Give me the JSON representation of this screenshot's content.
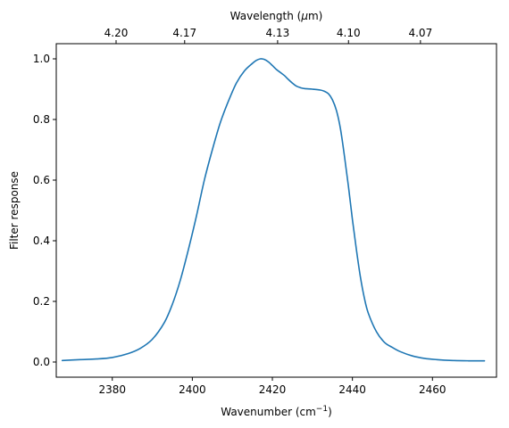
{
  "chart_data": {
    "type": "line",
    "xlabel_text": "Wavenumber (cm",
    "xlabel_sup": "−1",
    "xlabel_close": ")",
    "ylabel": "Filter response",
    "top_xlabel_prefix": "Wavelength (",
    "top_xlabel_mu": "μ",
    "top_xlabel_suffix": "m)",
    "xlim": [
      2366,
      2476
    ],
    "ylim": [
      -0.05,
      1.05
    ],
    "x_ticks": [
      2380,
      2400,
      2420,
      2440,
      2460
    ],
    "x_tick_labels": [
      "2380",
      "2400",
      "2420",
      "2440",
      "2460"
    ],
    "y_ticks": [
      0.0,
      0.2,
      0.4,
      0.6,
      0.8,
      1.0
    ],
    "y_tick_labels": [
      "0.0",
      "0.2",
      "0.4",
      "0.6",
      "0.8",
      "1.0"
    ],
    "top_ticks": [
      {
        "wavenumber": 2380.95,
        "label": "4.20"
      },
      {
        "wavenumber": 2398.08,
        "label": "4.17"
      },
      {
        "wavenumber": 2421.31,
        "label": "4.13"
      },
      {
        "wavenumber": 2439.02,
        "label": "4.10"
      },
      {
        "wavenumber": 2457.0,
        "label": "4.07"
      }
    ],
    "grid": false,
    "series": [
      {
        "color": "#1f77b4",
        "x": [
          2367.5,
          2372,
          2376,
          2380,
          2384,
          2387,
          2390,
          2393,
          2395,
          2397,
          2399,
          2401,
          2403,
          2405,
          2407,
          2409,
          2411,
          2413,
          2415,
          2416,
          2417,
          2418,
          2419,
          2420,
          2421,
          2422,
          2423,
          2424,
          2425,
          2426,
          2427,
          2428,
          2430,
          2432,
          2433,
          2434,
          2435,
          2436,
          2437,
          2438,
          2439,
          2440,
          2441,
          2442,
          2443,
          2444,
          2446,
          2448,
          2450,
          2452,
          2455,
          2458,
          2461,
          2465,
          2469,
          2473
        ],
        "y": [
          0.005,
          0.008,
          0.01,
          0.015,
          0.028,
          0.045,
          0.075,
          0.13,
          0.19,
          0.27,
          0.37,
          0.48,
          0.6,
          0.7,
          0.79,
          0.86,
          0.92,
          0.96,
          0.985,
          0.995,
          1.0,
          0.998,
          0.99,
          0.978,
          0.965,
          0.955,
          0.945,
          0.932,
          0.92,
          0.91,
          0.905,
          0.902,
          0.9,
          0.897,
          0.893,
          0.885,
          0.865,
          0.83,
          0.77,
          0.68,
          0.58,
          0.47,
          0.37,
          0.28,
          0.21,
          0.16,
          0.1,
          0.065,
          0.048,
          0.034,
          0.02,
          0.012,
          0.008,
          0.005,
          0.004,
          0.004
        ]
      }
    ]
  }
}
